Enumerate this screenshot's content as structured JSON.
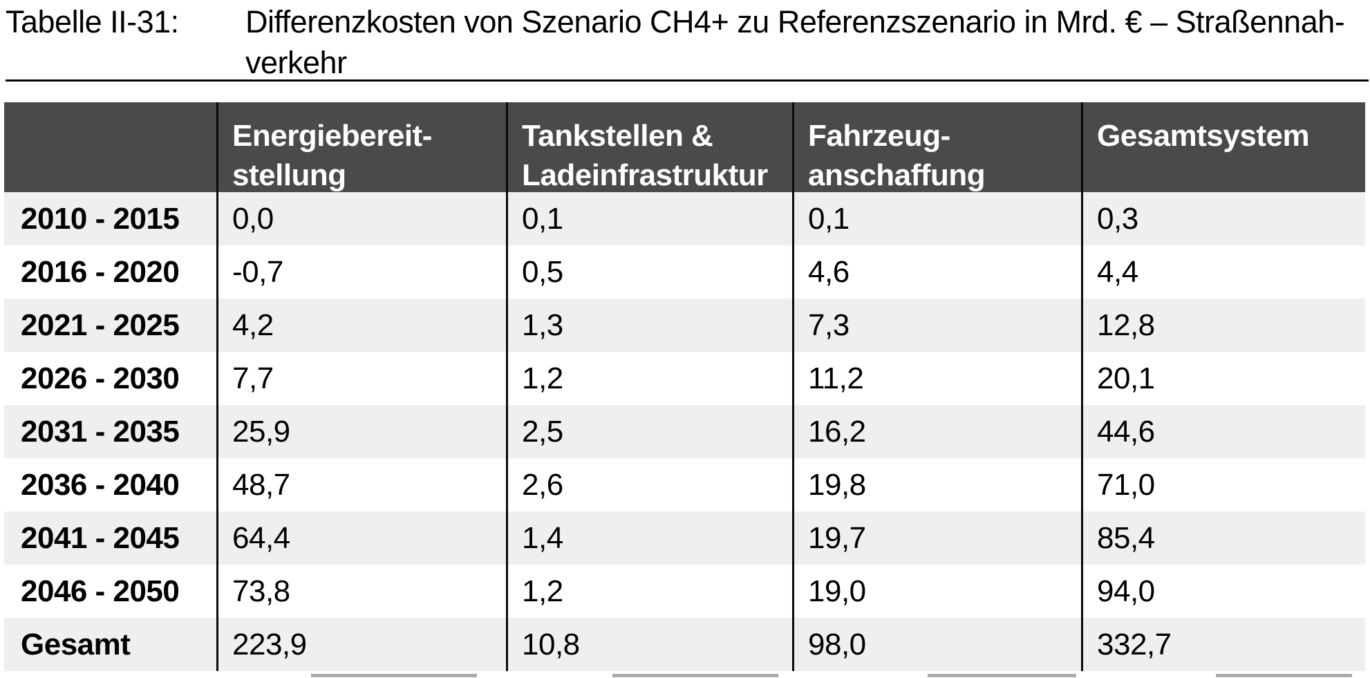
{
  "caption": {
    "label": "Tabelle II-31:",
    "text": "Differenzkosten von Szenario CH4+ zu Referenzszenario in Mrd. € – Straßennah-\nverkehr"
  },
  "table": {
    "columns": [
      "",
      "Energiebereit-\nstellung",
      "Tankstellen &\nLadeinfrastruktur",
      "Fahrzeug-\nanschaffung",
      "Gesamtsystem"
    ],
    "rows": [
      {
        "label": "2010 - 2015",
        "values": [
          "0,0",
          "0,1",
          "0,1",
          "0,3"
        ]
      },
      {
        "label": "2016 - 2020",
        "values": [
          "-0,7",
          "0,5",
          "4,6",
          "4,4"
        ]
      },
      {
        "label": "2021 - 2025",
        "values": [
          "4,2",
          "1,3",
          "7,3",
          "12,8"
        ]
      },
      {
        "label": "2026 - 2030",
        "values": [
          "7,7",
          "1,2",
          "11,2",
          "20,1"
        ]
      },
      {
        "label": "2031 - 2035",
        "values": [
          "25,9",
          "2,5",
          "16,2",
          "44,6"
        ]
      },
      {
        "label": "2036 - 2040",
        "values": [
          "48,7",
          "2,6",
          "19,8",
          "71,0"
        ]
      },
      {
        "label": "2041 - 2045",
        "values": [
          "64,4",
          "1,4",
          "19,7",
          "85,4"
        ]
      },
      {
        "label": "2046 - 2050",
        "values": [
          "73,8",
          "1,2",
          "19,0",
          "94,0"
        ]
      },
      {
        "label": "Gesamt",
        "values": [
          "223,9",
          "10,8",
          "98,0",
          "332,7"
        ]
      }
    ]
  },
  "colors": {
    "header_bg": "#4a4a4a",
    "header_text": "#ffffff",
    "stripe": "#efefef",
    "grid_line": "#0a0a0a",
    "body_text": "#000000"
  }
}
